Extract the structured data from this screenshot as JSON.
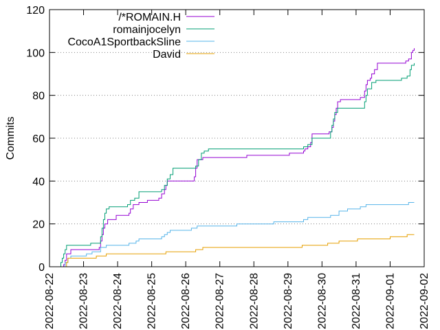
{
  "chart_data": {
    "type": "line",
    "title": "",
    "xlabel": "",
    "ylabel": "Commits",
    "x_type": "date",
    "xlim": [
      "2022-08-22",
      "2022-09-02"
    ],
    "ylim": [
      0,
      120
    ],
    "yticks": [
      0,
      20,
      40,
      60,
      80,
      100,
      120
    ],
    "xticks": [
      "2022-08-22",
      "2022-08-23",
      "2022-08-24",
      "2022-08-25",
      "2022-08-26",
      "2022-08-27",
      "2022-08-28",
      "2022-08-29",
      "2022-08-30",
      "2022-08-31",
      "2022-09-01",
      "2022-09-02"
    ],
    "grid": "horizontal-dotted",
    "legend_position": "top-left-inside",
    "step": true,
    "series": [
      {
        "name": "/*ROMAIN.H",
        "color": "#9400d3",
        "points": [
          [
            "2022-08-22T09:00",
            0
          ],
          [
            "2022-08-22T10:00",
            1
          ],
          [
            "2022-08-22T11:00",
            3
          ],
          [
            "2022-08-22T12:00",
            6
          ],
          [
            "2022-08-22T15:00",
            8
          ],
          [
            "2022-08-23T11:00",
            9
          ],
          [
            "2022-08-23T12:00",
            12
          ],
          [
            "2022-08-23T13:00",
            15
          ],
          [
            "2022-08-23T14:00",
            18
          ],
          [
            "2022-08-23T15:00",
            20
          ],
          [
            "2022-08-23T17:00",
            22
          ],
          [
            "2022-08-23T23:00",
            24
          ],
          [
            "2022-08-24T08:00",
            25
          ],
          [
            "2022-08-24T09:00",
            27
          ],
          [
            "2022-08-24T11:00",
            29
          ],
          [
            "2022-08-24T15:00",
            30
          ],
          [
            "2022-08-24T21:00",
            31
          ],
          [
            "2022-08-25T05:00",
            32
          ],
          [
            "2022-08-25T07:00",
            34
          ],
          [
            "2022-08-25T09:00",
            36
          ],
          [
            "2022-08-25T10:00",
            38
          ],
          [
            "2022-08-25T11:00",
            40
          ],
          [
            "2022-08-26T06:00",
            42
          ],
          [
            "2022-08-26T07:00",
            46
          ],
          [
            "2022-08-26T08:00",
            50
          ],
          [
            "2022-08-26T12:00",
            51
          ],
          [
            "2022-08-27T19:00",
            52
          ],
          [
            "2022-08-29T01:00",
            53
          ],
          [
            "2022-08-29T11:00",
            54
          ],
          [
            "2022-08-29T12:00",
            55
          ],
          [
            "2022-08-29T14:00",
            56
          ],
          [
            "2022-08-29T16:00",
            58
          ],
          [
            "2022-08-29T17:00",
            62
          ],
          [
            "2022-08-30T05:00",
            63
          ],
          [
            "2022-08-30T07:00",
            65
          ],
          [
            "2022-08-30T08:00",
            68
          ],
          [
            "2022-08-30T09:00",
            71
          ],
          [
            "2022-08-30T10:00",
            74
          ],
          [
            "2022-08-30T11:00",
            77
          ],
          [
            "2022-08-30T13:00",
            78
          ],
          [
            "2022-08-31T03:00",
            79
          ],
          [
            "2022-08-31T06:00",
            82
          ],
          [
            "2022-08-31T07:00",
            85
          ],
          [
            "2022-08-31T08:00",
            87
          ],
          [
            "2022-08-31T10:00",
            88
          ],
          [
            "2022-08-31T11:00",
            90
          ],
          [
            "2022-08-31T13:00",
            92
          ],
          [
            "2022-08-31T15:00",
            95
          ],
          [
            "2022-09-01T11:00",
            96
          ],
          [
            "2022-09-01T13:00",
            97
          ],
          [
            "2022-09-01T15:00",
            100
          ],
          [
            "2022-09-01T16:00",
            101
          ],
          [
            "2022-09-01T17:00",
            102
          ]
        ]
      },
      {
        "name": "romainjocelyn",
        "color": "#009e73",
        "points": [
          [
            "2022-08-22T07:00",
            0
          ],
          [
            "2022-08-22T08:00",
            2
          ],
          [
            "2022-08-22T09:00",
            4
          ],
          [
            "2022-08-22T10:00",
            6
          ],
          [
            "2022-08-22T11:00",
            8
          ],
          [
            "2022-08-22T12:00",
            10
          ],
          [
            "2022-08-23T05:00",
            11
          ],
          [
            "2022-08-23T12:00",
            14
          ],
          [
            "2022-08-23T13:00",
            18
          ],
          [
            "2022-08-23T14:00",
            22
          ],
          [
            "2022-08-23T15:00",
            25
          ],
          [
            "2022-08-23T16:00",
            27
          ],
          [
            "2022-08-23T18:00",
            28
          ],
          [
            "2022-08-24T07:00",
            29
          ],
          [
            "2022-08-24T09:00",
            31
          ],
          [
            "2022-08-24T12:00",
            32
          ],
          [
            "2022-08-24T15:00",
            35
          ],
          [
            "2022-08-25T07:00",
            36
          ],
          [
            "2022-08-25T09:00",
            38
          ],
          [
            "2022-08-25T11:00",
            41
          ],
          [
            "2022-08-25T13:00",
            43
          ],
          [
            "2022-08-25T15:00",
            46
          ],
          [
            "2022-08-26T07:00",
            47
          ],
          [
            "2022-08-26T09:00",
            50
          ],
          [
            "2022-08-26T11:00",
            53
          ],
          [
            "2022-08-26T13:00",
            54
          ],
          [
            "2022-08-26T16:00",
            55
          ],
          [
            "2022-08-29T11:00",
            56
          ],
          [
            "2022-08-29T14:00",
            57
          ],
          [
            "2022-08-29T17:00",
            60
          ],
          [
            "2022-08-30T06:00",
            63
          ],
          [
            "2022-08-30T07:00",
            66
          ],
          [
            "2022-08-30T08:00",
            69
          ],
          [
            "2022-08-30T09:00",
            72
          ],
          [
            "2022-08-30T11:00",
            74
          ],
          [
            "2022-08-31T06:00",
            77
          ],
          [
            "2022-08-31T07:00",
            80
          ],
          [
            "2022-08-31T08:00",
            83
          ],
          [
            "2022-08-31T11:00",
            86
          ],
          [
            "2022-08-31T14:00",
            87
          ],
          [
            "2022-09-01T08:00",
            88
          ],
          [
            "2022-09-01T12:00",
            89
          ],
          [
            "2022-09-01T14:00",
            92
          ],
          [
            "2022-09-01T15:00",
            94
          ],
          [
            "2022-09-01T17:00",
            95
          ]
        ]
      },
      {
        "name": "CocoA1SportbackSline",
        "color": "#56b4e9",
        "points": [
          [
            "2022-08-22T09:00",
            0
          ],
          [
            "2022-08-22T11:00",
            2
          ],
          [
            "2022-08-22T13:00",
            4
          ],
          [
            "2022-08-22T15:00",
            5
          ],
          [
            "2022-08-23T02:00",
            6
          ],
          [
            "2022-08-23T06:00",
            7
          ],
          [
            "2022-08-23T12:00",
            9
          ],
          [
            "2022-08-23T16:00",
            10
          ],
          [
            "2022-08-24T08:00",
            11
          ],
          [
            "2022-08-24T13:00",
            12
          ],
          [
            "2022-08-24T15:00",
            13
          ],
          [
            "2022-08-25T07:00",
            14
          ],
          [
            "2022-08-25T09:00",
            15
          ],
          [
            "2022-08-25T11:00",
            16
          ],
          [
            "2022-08-25T13:00",
            17
          ],
          [
            "2022-08-26T04:00",
            18
          ],
          [
            "2022-08-26T08:00",
            19
          ],
          [
            "2022-08-27T12:00",
            20
          ],
          [
            "2022-08-28T14:00",
            21
          ],
          [
            "2022-08-29T11:00",
            22
          ],
          [
            "2022-08-29T14:00",
            23
          ],
          [
            "2022-08-30T06:00",
            24
          ],
          [
            "2022-08-30T12:00",
            26
          ],
          [
            "2022-08-30T18:00",
            27
          ],
          [
            "2022-08-31T03:00",
            28
          ],
          [
            "2022-08-31T07:00",
            29
          ],
          [
            "2022-09-01T13:00",
            30
          ],
          [
            "2022-09-01T17:00",
            30
          ]
        ]
      },
      {
        "name": "David",
        "color": "#e69f00",
        "points": [
          [
            "2022-08-22T11:00",
            0
          ],
          [
            "2022-08-22T12:00",
            2
          ],
          [
            "2022-08-22T13:00",
            4
          ],
          [
            "2022-08-23T09:00",
            5
          ],
          [
            "2022-08-23T16:00",
            6
          ],
          [
            "2022-08-25T10:00",
            7
          ],
          [
            "2022-08-26T07:00",
            8
          ],
          [
            "2022-08-26T12:00",
            9
          ],
          [
            "2022-08-28T12:00",
            9
          ],
          [
            "2022-08-29T10:00",
            10
          ],
          [
            "2022-08-30T04:00",
            11
          ],
          [
            "2022-08-30T12:00",
            12
          ],
          [
            "2022-08-31T01:00",
            13
          ],
          [
            "2022-08-31T09:00",
            13
          ],
          [
            "2022-09-01T00:00",
            14
          ],
          [
            "2022-09-01T12:00",
            15
          ],
          [
            "2022-09-01T17:00",
            15
          ]
        ]
      }
    ]
  }
}
